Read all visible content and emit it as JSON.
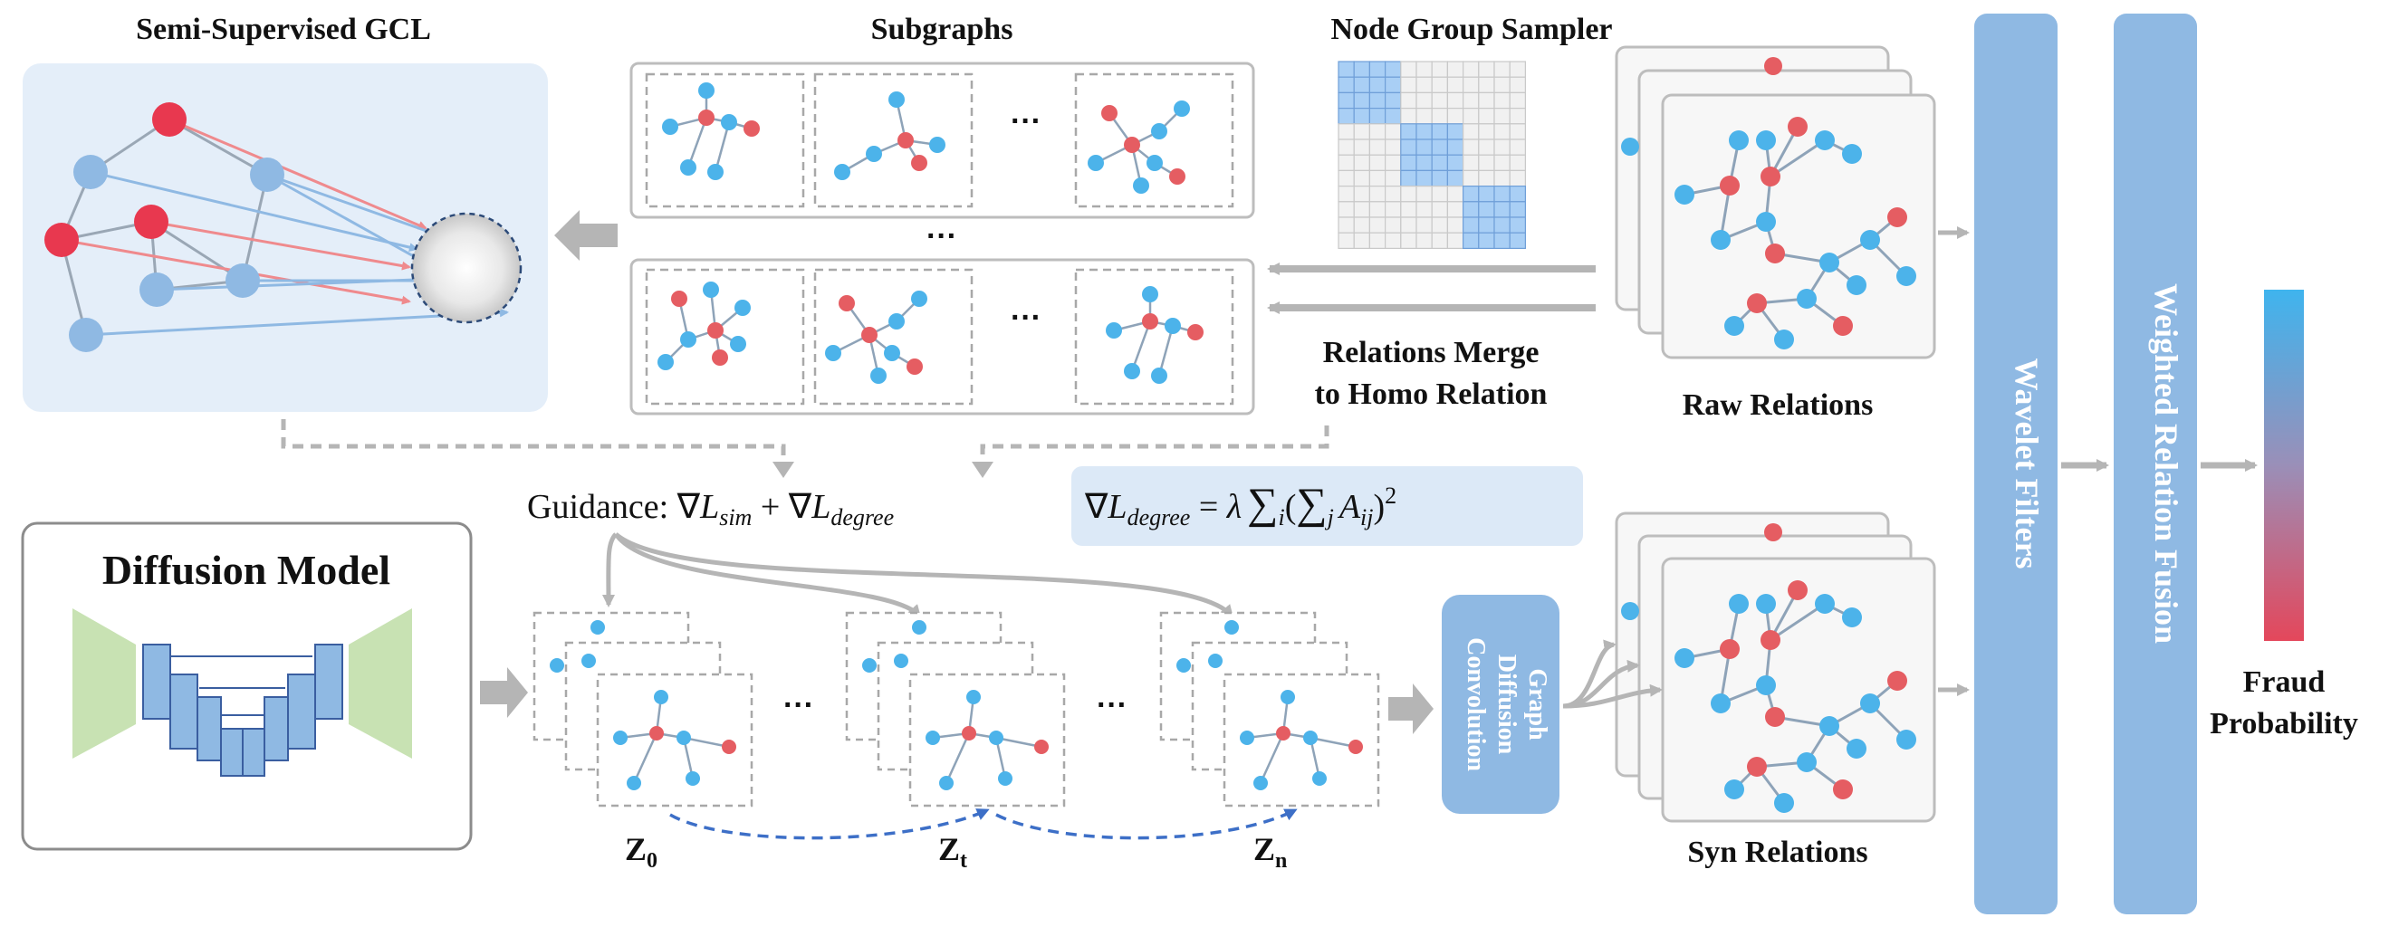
{
  "titles": {
    "gcl": "Semi-Supervised GCL",
    "subgraphs": "Subgraphs",
    "sampler": "Node Group Sampler",
    "merge_line1": "Relations Merge",
    "merge_line2": "to Homo Relation",
    "raw": "Raw Relations",
    "syn": "Syn Relations",
    "diffusion": "Diffusion Model",
    "fraud_line1": "Fraud",
    "fraud_line2": "Probability",
    "wavelet": "Wavelet  Filters",
    "weighted": "Weighted  Relation  Fusion",
    "gdc_line1": "Graph",
    "gdc_line2": "Diffusion",
    "gdc_line3": "Convolution"
  },
  "guidance": {
    "prefix": "Guidance: ∇",
    "l1": "L",
    "l1_sub": "sim",
    "plus": " + ∇",
    "l2": "L",
    "l2_sub": "degree"
  },
  "formula": {
    "nabla": "∇",
    "l": "L",
    "l_sub": "degree",
    "eq": " = ",
    "lambda": "λ",
    "sum1": "∑",
    "sum1_sub": "i",
    "paren_open": "(",
    "sum2": "∑",
    "sum2_sub": "j",
    "a": "A",
    "a_sub": "ij",
    "paren_close": ")",
    "sup": "2"
  },
  "z_labels": [
    {
      "main": "Z",
      "sub": "0"
    },
    {
      "main": "Z",
      "sub": "t"
    },
    {
      "main": "Z",
      "sub": "n"
    }
  ],
  "ellipsis": "···",
  "colors": {
    "node_blue": "#4cb3ea",
    "node_red": "#e55d62",
    "gcl_red": "#e8384f",
    "gcl_blue": "#8fb9e3",
    "panel_blue": "#e4eef9",
    "column_blue": "#8fb9e3",
    "formula_bg": "#dce9f7",
    "unet_green": "#c8e2b3",
    "unet_blue": "#8fb9e3",
    "arrow_gray": "#b5b5b5"
  }
}
